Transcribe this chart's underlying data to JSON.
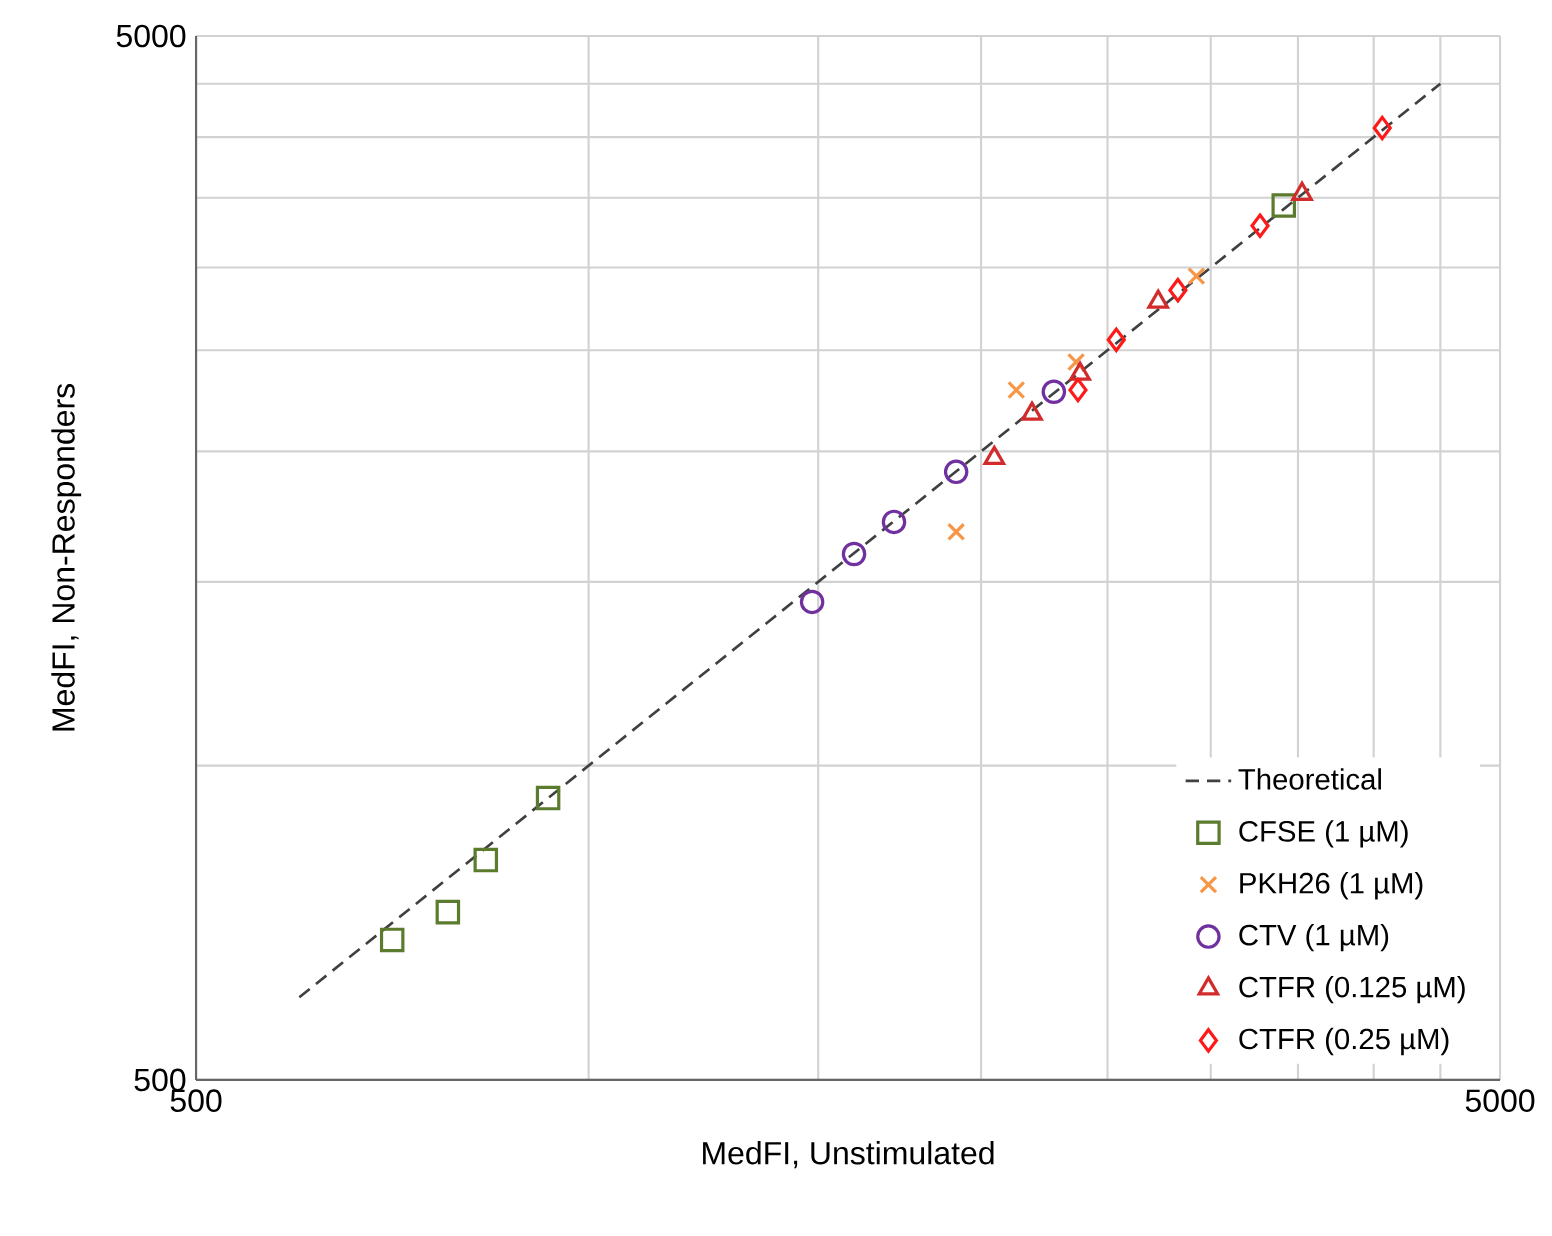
{
  "chart_data": {
    "type": "scatter",
    "xlabel": "MedFI, Unstimulated",
    "ylabel": "MedFI, Non-Responders",
    "log": "xy",
    "grid": true,
    "legend": "bottom right",
    "xlim": [
      500,
      5000
    ],
    "ylim": [
      500,
      5000
    ],
    "xticks": [
      500,
      {
        "value": 1000,
        "label": null
      },
      {
        "value": 1500,
        "label": null
      },
      {
        "value": 2000,
        "label": null
      },
      {
        "value": 2500,
        "label": null
      },
      {
        "value": 3000,
        "label": null
      },
      {
        "value": 3500,
        "label": null
      },
      {
        "value": 4000,
        "label": null
      },
      {
        "value": 4500,
        "label": null
      },
      5000
    ],
    "yticks": [
      500,
      {
        "value": 1000,
        "label": null
      },
      {
        "value": 1500,
        "label": null
      },
      {
        "value": 2000,
        "label": null
      },
      {
        "value": 2500,
        "label": null
      },
      {
        "value": 3000,
        "label": null
      },
      {
        "value": 3500,
        "label": null
      },
      {
        "value": 4000,
        "label": null
      },
      {
        "value": 4500,
        "label": null
      },
      5000
    ],
    "series": [
      {
        "name": "Theoretical",
        "type": "line",
        "line_style": "dashed",
        "marker": "none",
        "color": "#404040",
        "x": [
          600,
          4500
        ],
        "values": [
          600,
          4500
        ]
      },
      {
        "name": "CFSE (1 µM)",
        "marker": "square",
        "color": "#5b7b2e",
        "x": [
          707,
          780,
          834,
          931,
          3413
        ],
        "values": [
          681,
          724,
          812,
          931,
          3440
        ]
      },
      {
        "name": "PKH26 (1 µM)",
        "marker": "cross",
        "color": "#f79646",
        "x": [
          1914,
          2128,
          2365,
          2925
        ],
        "values": [
          1675,
          2290,
          2436,
          2944
        ]
      },
      {
        "name": "CTV (1 µM)",
        "marker": "circle",
        "color": "#7030a0",
        "x": [
          1484,
          1598,
          1715,
          1914,
          2274
        ],
        "values": [
          1435,
          1595,
          1712,
          1912,
          2281
        ]
      },
      {
        "name": "CTFR (0.125 µM)",
        "marker": "triangle",
        "color": "#d22b2b",
        "x": [
          2047,
          2188,
          2382,
          2734,
          3525
        ],
        "values": [
          1971,
          2173,
          2373,
          2782,
          3529
        ]
      },
      {
        "name": "CTFR (0.25 µM)",
        "marker": "diamond",
        "color": "#ff1a1a",
        "x": [
          2373,
          2539,
          2831,
          3273,
          4061
        ],
        "values": [
          2290,
          2558,
          2854,
          3290,
          4081
        ]
      }
    ]
  }
}
